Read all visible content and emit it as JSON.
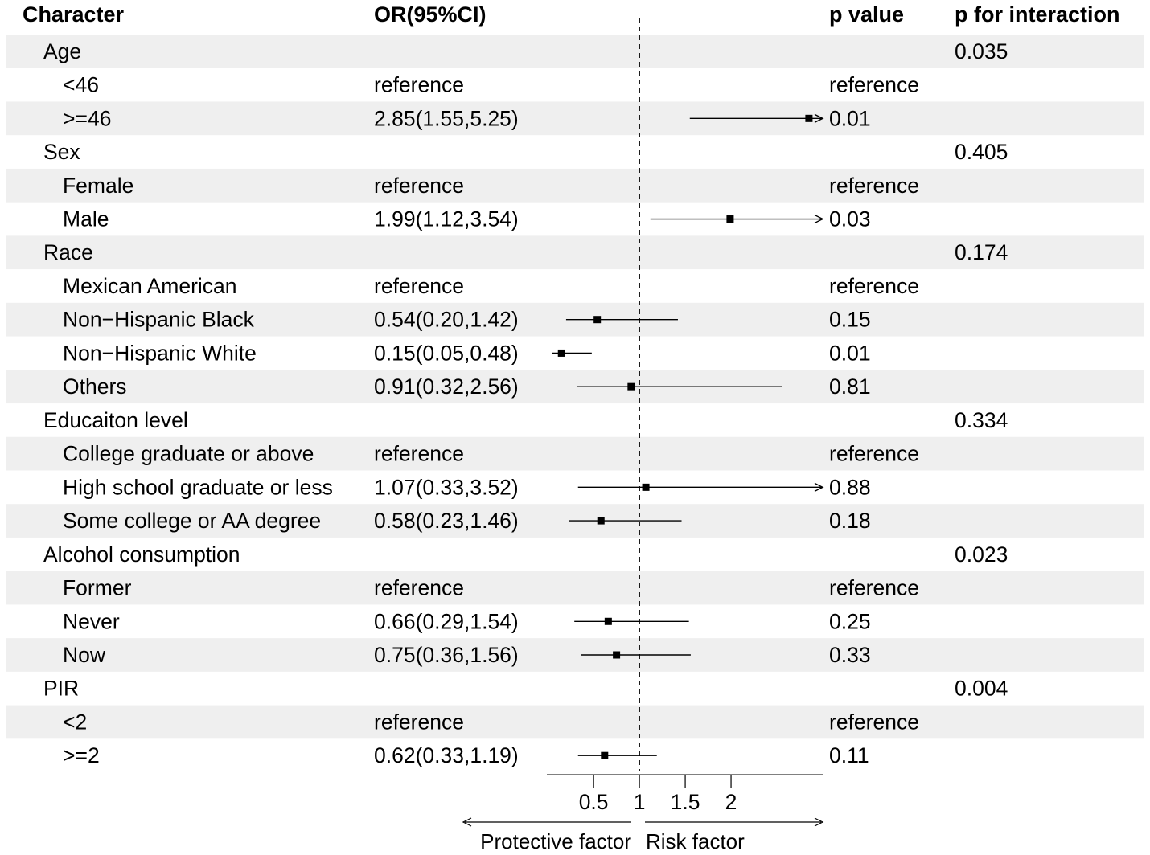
{
  "chart_data": {
    "type": "forest",
    "headers": {
      "character": "Character",
      "or": "OR(95%CI)",
      "p": "p value",
      "interaction": "p for interaction"
    },
    "rows": [
      {
        "label": "Age",
        "level": 0,
        "or_text": "",
        "p": "",
        "interaction": "0.035"
      },
      {
        "label": "<46",
        "level": 1,
        "or_text": "reference",
        "p": "reference",
        "interaction": ""
      },
      {
        "label": ">=46",
        "level": 1,
        "or_text": "2.85(1.55,5.25)",
        "p": "0.01",
        "interaction": "",
        "or": 2.85,
        "lo": 1.55,
        "hi": 5.25
      },
      {
        "label": "Sex",
        "level": 0,
        "or_text": "",
        "p": "",
        "interaction": "0.405"
      },
      {
        "label": "Female",
        "level": 1,
        "or_text": "reference",
        "p": "reference",
        "interaction": ""
      },
      {
        "label": "Male",
        "level": 1,
        "or_text": "1.99(1.12,3.54)",
        "p": "0.03",
        "interaction": "",
        "or": 1.99,
        "lo": 1.12,
        "hi": 3.54
      },
      {
        "label": "Race",
        "level": 0,
        "or_text": "",
        "p": "",
        "interaction": "0.174"
      },
      {
        "label": "Mexican American",
        "level": 1,
        "or_text": "reference",
        "p": "reference",
        "interaction": ""
      },
      {
        "label": "Non−Hispanic Black",
        "level": 1,
        "or_text": "0.54(0.20,1.42)",
        "p": "0.15",
        "interaction": "",
        "or": 0.54,
        "lo": 0.2,
        "hi": 1.42
      },
      {
        "label": "Non−Hispanic White",
        "level": 1,
        "or_text": "0.15(0.05,0.48)",
        "p": "0.01",
        "interaction": "",
        "or": 0.15,
        "lo": 0.05,
        "hi": 0.48
      },
      {
        "label": "Others",
        "level": 1,
        "or_text": "0.91(0.32,2.56)",
        "p": "0.81",
        "interaction": "",
        "or": 0.91,
        "lo": 0.32,
        "hi": 2.56
      },
      {
        "label": "Educaiton level",
        "level": 0,
        "or_text": "",
        "p": "",
        "interaction": "0.334"
      },
      {
        "label": "College graduate or above",
        "level": 1,
        "or_text": "reference",
        "p": "reference",
        "interaction": ""
      },
      {
        "label": "High school graduate or less",
        "level": 1,
        "or_text": "1.07(0.33,3.52)",
        "p": "0.88",
        "interaction": "",
        "or": 1.07,
        "lo": 0.33,
        "hi": 3.52
      },
      {
        "label": "Some college or AA degree",
        "level": 1,
        "or_text": "0.58(0.23,1.46)",
        "p": "0.18",
        "interaction": "",
        "or": 0.58,
        "lo": 0.23,
        "hi": 1.46
      },
      {
        "label": "Alcohol consumption",
        "level": 0,
        "or_text": "",
        "p": "",
        "interaction": "0.023"
      },
      {
        "label": "Former",
        "level": 1,
        "or_text": "reference",
        "p": "reference",
        "interaction": ""
      },
      {
        "label": "Never",
        "level": 1,
        "or_text": "0.66(0.29,1.54)",
        "p": "0.25",
        "interaction": "",
        "or": 0.66,
        "lo": 0.29,
        "hi": 1.54
      },
      {
        "label": "Now",
        "level": 1,
        "or_text": "0.75(0.36,1.56)",
        "p": "0.33",
        "interaction": "",
        "or": 0.75,
        "lo": 0.36,
        "hi": 1.56
      },
      {
        "label": "PIR",
        "level": 0,
        "or_text": "",
        "p": "",
        "interaction": "0.004"
      },
      {
        "label": "<2",
        "level": 1,
        "or_text": "reference",
        "p": "reference",
        "interaction": ""
      },
      {
        "label": ">=2",
        "level": 1,
        "or_text": "0.62(0.33,1.19)",
        "p": "0.11",
        "interaction": "",
        "or": 0.62,
        "lo": 0.33,
        "hi": 1.19
      }
    ],
    "xlim": [
      -0.01,
      3
    ],
    "reference_line": 1,
    "xticks": [
      0.5,
      1,
      1.5,
      2
    ],
    "xtick_labels": [
      "0.5",
      "1",
      "1.5",
      "2"
    ],
    "direction_labels": {
      "left": "Protective factor",
      "right": "Risk factor"
    },
    "stripe_color": "#efefef",
    "point_color": "#000000"
  }
}
